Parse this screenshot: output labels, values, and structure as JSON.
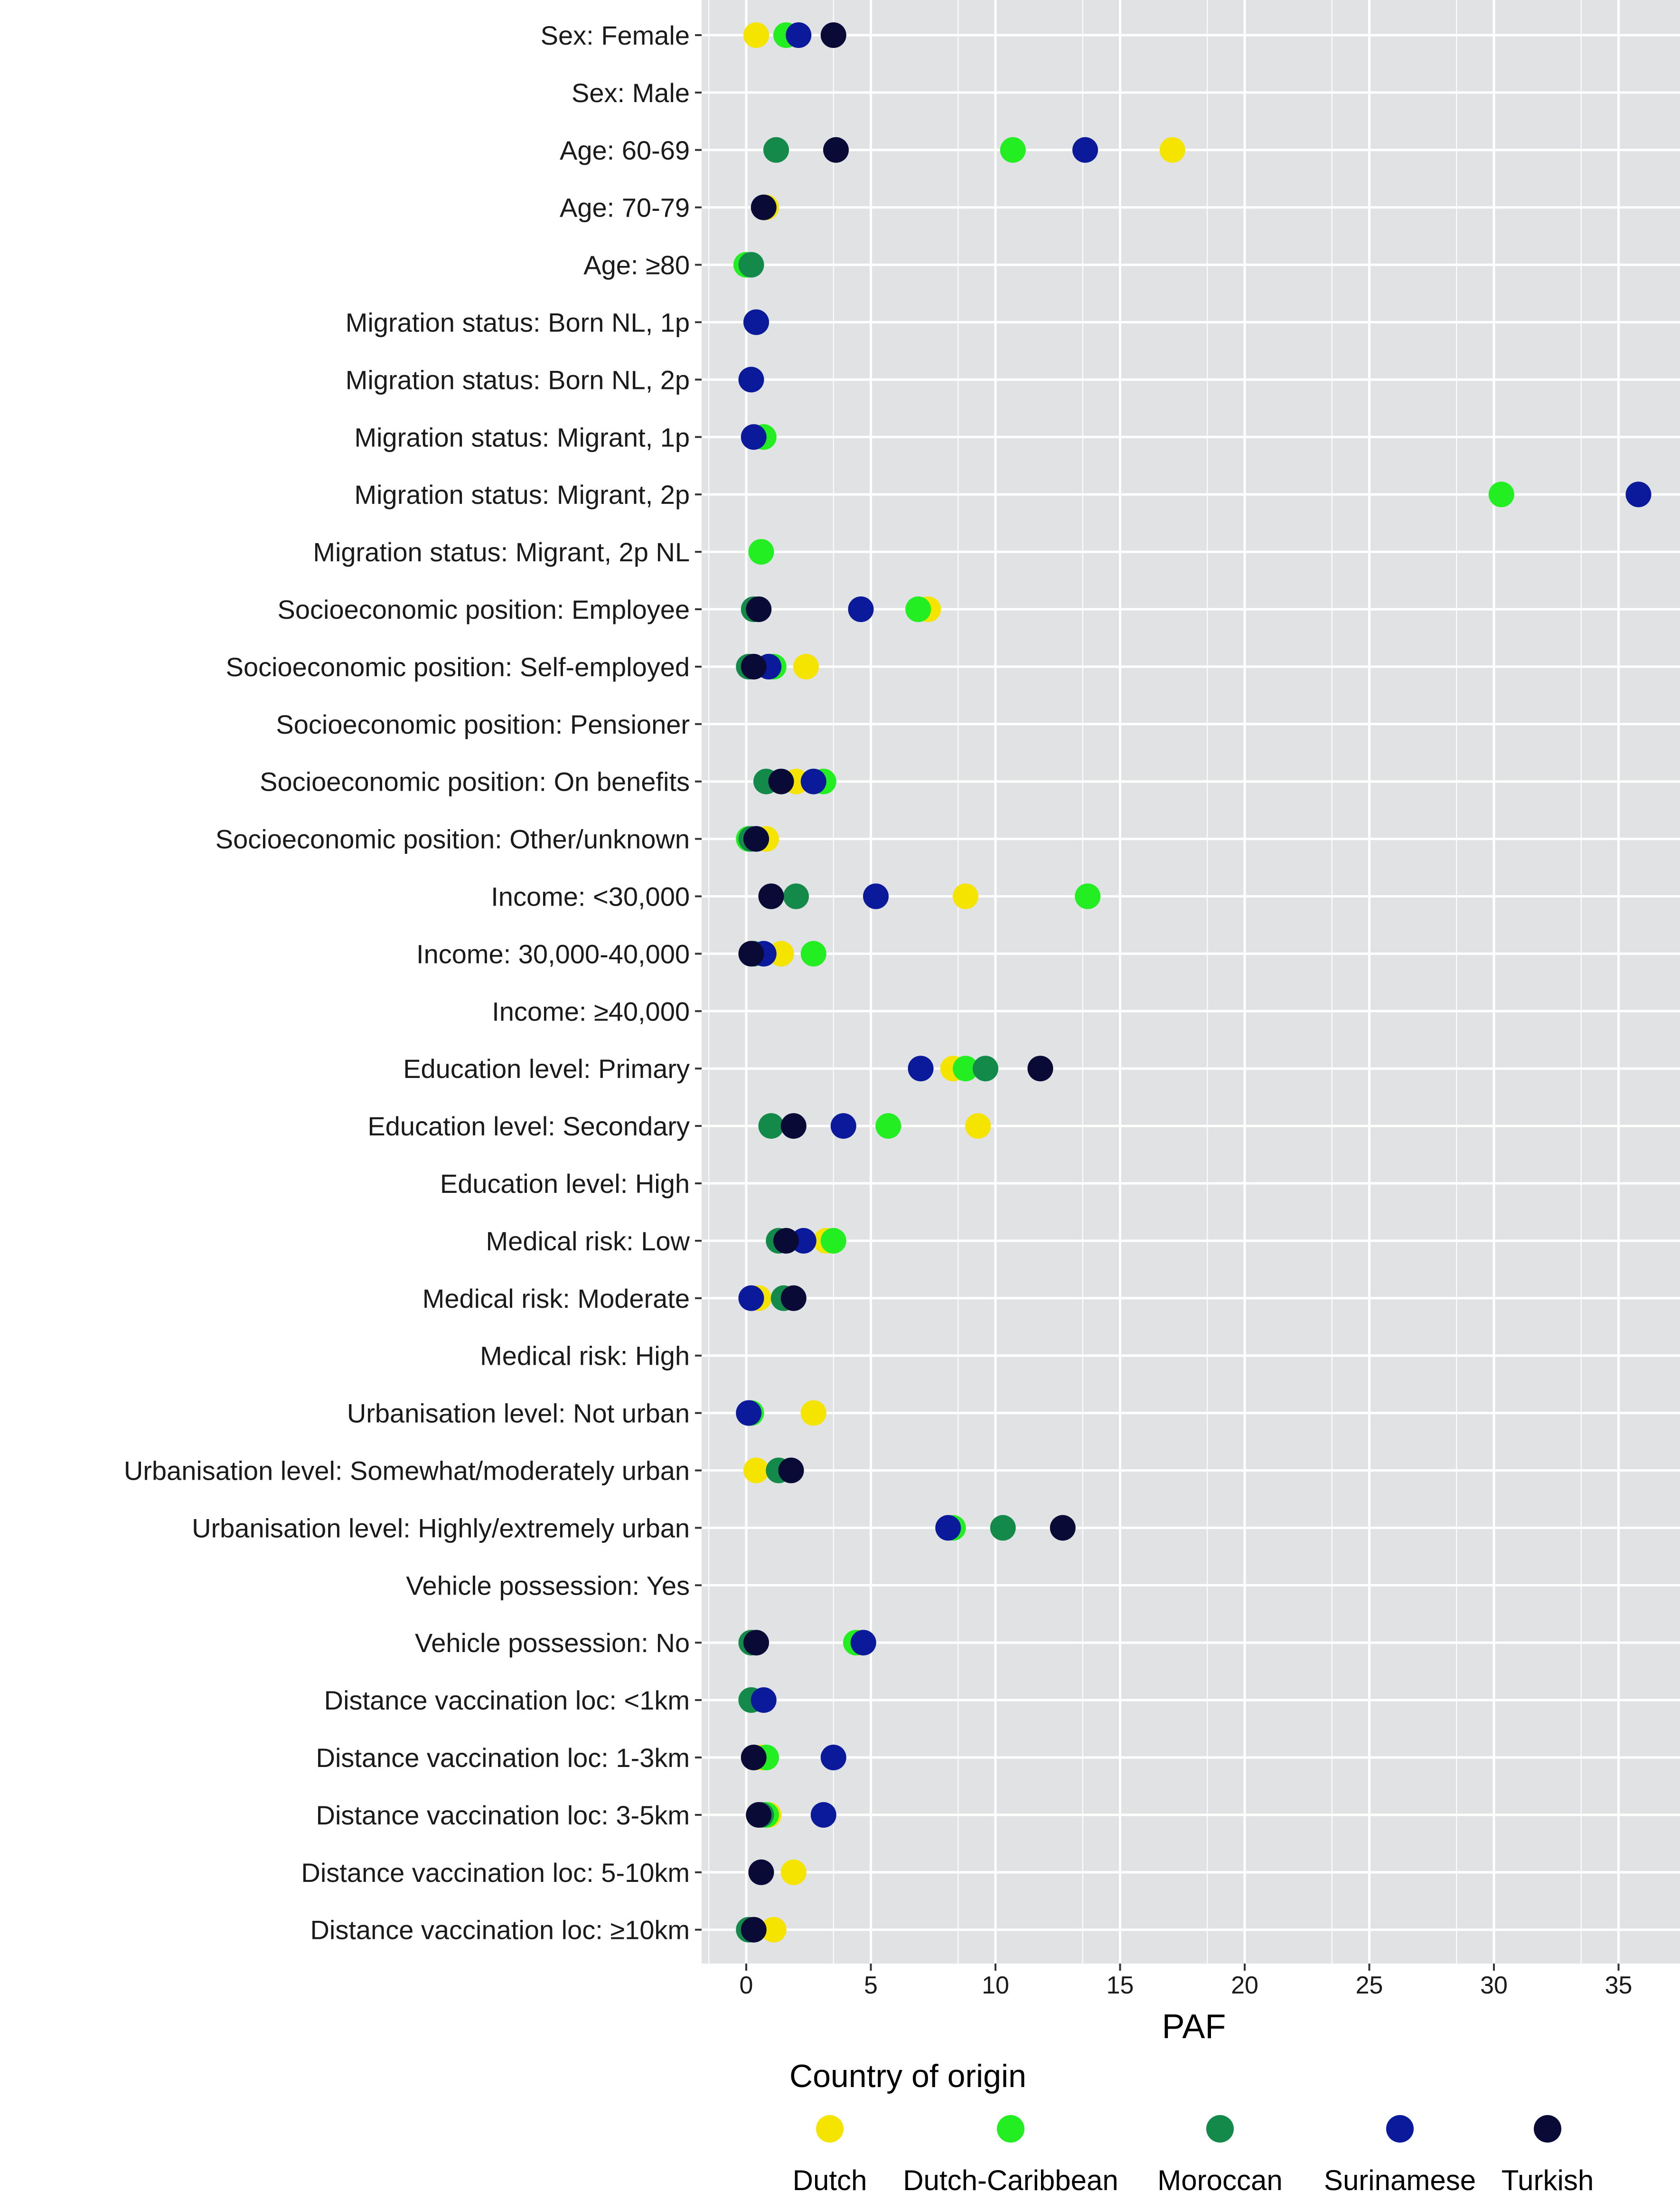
{
  "chart_data": {
    "type": "scatter",
    "title": "",
    "xlabel": "PAF",
    "ylabel": "",
    "xlim": [
      -2,
      37
    ],
    "xticks": [
      0,
      5,
      10,
      15,
      20,
      25,
      30,
      35
    ],
    "grid": true,
    "legend_title": "Country of origin",
    "legend_position": "bottom",
    "categories": [
      "Sex: Female",
      "Sex: Male",
      "Age: 60-69",
      "Age: 70-79",
      "Age: ≥80",
      "Migration status: Born NL, 1p",
      "Migration status: Born NL, 2p",
      "Migration status: Migrant, 1p",
      "Migration status: Migrant, 2p",
      "Migration status: Migrant, 2p NL",
      "Socioeconomic position: Employee",
      "Socioeconomic position: Self-employed",
      "Socioeconomic position: Pensioner",
      "Socioeconomic position: On benefits",
      "Socioeconomic position: Other/unknown",
      "Income: <30,000",
      "Income: 30,000-40,000",
      "Income: ≥40,000",
      "Education level: Primary",
      "Education level: Secondary",
      "Education level: High",
      "Medical risk: Low",
      "Medical risk: Moderate",
      "Medical risk: High",
      "Urbanisation level: Not urban",
      "Urbanisation level: Somewhat/moderately urban",
      "Urbanisation level: Highly/extremely urban",
      "Vehicle possession: Yes",
      "Vehicle possession: No",
      "Distance vaccination loc: <1km",
      "Distance vaccination loc: 1-3km",
      "Distance vaccination loc: 3-5km",
      "Distance vaccination loc: 5-10km",
      "Distance vaccination loc: ≥10km"
    ],
    "series": [
      {
        "name": "Dutch",
        "color": "#f5e400",
        "values": [
          0.4,
          null,
          17.1,
          0.8,
          null,
          null,
          null,
          null,
          null,
          null,
          7.3,
          2.4,
          null,
          2.0,
          0.8,
          8.8,
          1.4,
          null,
          8.3,
          9.3,
          null,
          3.2,
          0.5,
          null,
          2.7,
          0.4,
          null,
          null,
          4.5,
          null,
          0.6,
          0.9,
          1.9,
          1.1
        ]
      },
      {
        "name": "Dutch-Caribbean",
        "color": "#22ee22",
        "values": [
          1.6,
          null,
          10.7,
          null,
          0.0,
          0.4,
          null,
          0.7,
          30.3,
          0.6,
          6.9,
          1.1,
          null,
          3.1,
          0.1,
          13.7,
          2.7,
          null,
          8.8,
          5.7,
          null,
          3.5,
          null,
          null,
          0.2,
          null,
          8.3,
          null,
          4.4,
          0.2,
          0.8,
          0.8,
          null,
          null
        ]
      },
      {
        "name": "Moroccan",
        "color": "#138a4a",
        "values": [
          null,
          null,
          1.2,
          null,
          0.2,
          null,
          null,
          null,
          null,
          null,
          0.3,
          0.1,
          null,
          0.8,
          0.2,
          2.0,
          0.3,
          null,
          9.6,
          1.0,
          null,
          1.3,
          1.5,
          null,
          null,
          1.3,
          10.3,
          null,
          0.2,
          0.2,
          null,
          0.6,
          null,
          0.1
        ]
      },
      {
        "name": "Surinamese",
        "color": "#0a1a9a",
        "values": [
          2.1,
          null,
          13.6,
          null,
          null,
          0.4,
          0.2,
          0.3,
          35.8,
          null,
          4.6,
          0.9,
          null,
          2.7,
          0.4,
          5.2,
          0.7,
          null,
          7.0,
          3.9,
          null,
          2.3,
          0.2,
          null,
          0.1,
          null,
          8.1,
          null,
          4.7,
          0.7,
          3.5,
          3.1,
          null,
          null
        ]
      },
      {
        "name": "Turkish",
        "color": "#0a0a36",
        "values": [
          3.5,
          null,
          3.6,
          0.7,
          null,
          null,
          null,
          null,
          null,
          null,
          0.5,
          0.3,
          null,
          1.4,
          0.4,
          1.0,
          0.2,
          null,
          11.8,
          1.9,
          null,
          1.6,
          1.9,
          null,
          null,
          1.8,
          12.7,
          null,
          0.4,
          null,
          0.3,
          0.5,
          0.6,
          0.3
        ]
      }
    ]
  }
}
